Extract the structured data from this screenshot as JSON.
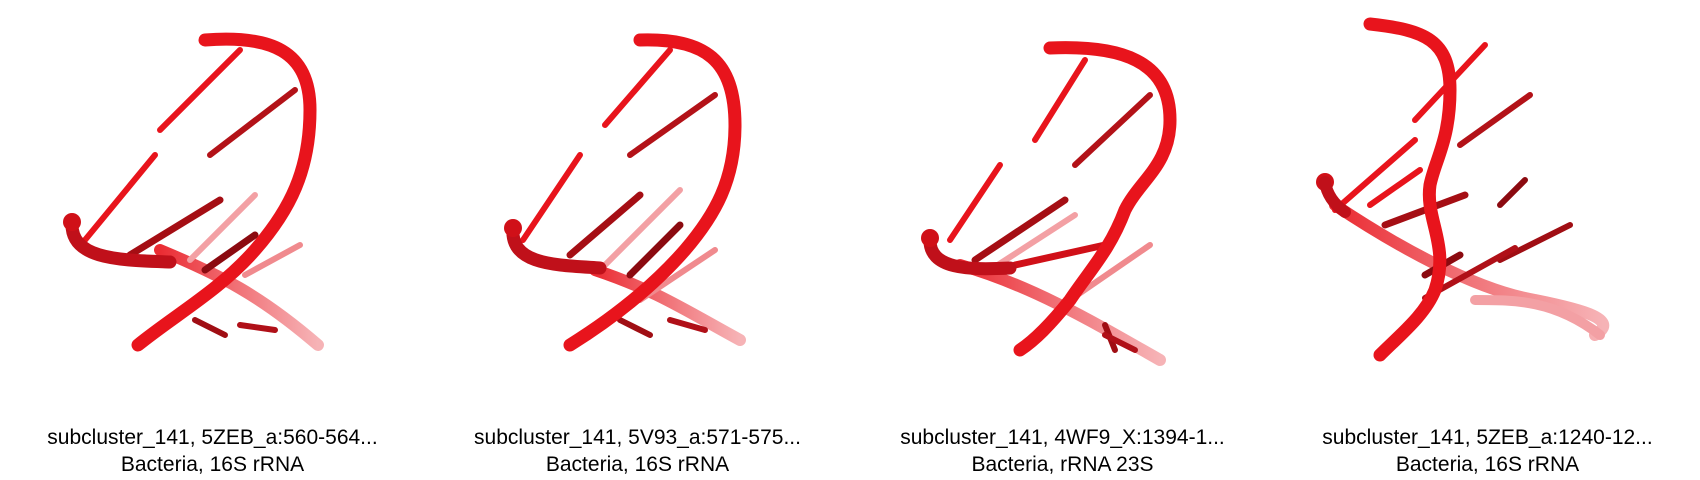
{
  "panels": [
    {
      "title": "subcluster_141, 5ZEB_a:560-564...",
      "subtitle": "Bacteria, 16S rRNA"
    },
    {
      "title": "subcluster_141, 5V93_a:571-575...",
      "subtitle": "Bacteria, 16S rRNA"
    },
    {
      "title": "subcluster_141, 4WF9_X:1394-1...",
      "subtitle": "Bacteria, rRNA 23S"
    },
    {
      "title": "subcluster_141, 5ZEB_a:1240-12...",
      "subtitle": "Bacteria, 16S rRNA"
    }
  ],
  "colors": {
    "strand": "#e8141c",
    "strand_dark": "#8b0a10",
    "strand_faded": "#f08a8e"
  }
}
